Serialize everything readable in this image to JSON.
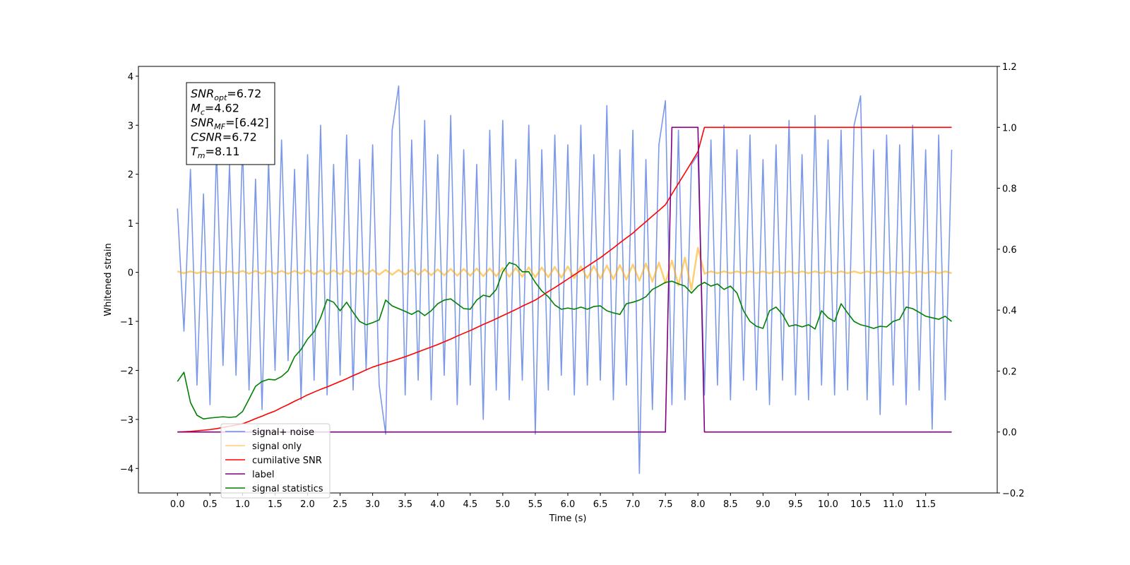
{
  "chart_data": {
    "type": "line",
    "xlabel": "Time (s)",
    "ylabel": "Whitened strain",
    "xlim": [
      -0.6,
      12.6
    ],
    "ylim": [
      -4.5,
      4.2
    ],
    "y2lim": [
      -0.2,
      1.2
    ],
    "xticks": [
      {
        "value": 0,
        "label": "0.0"
      },
      0.5,
      {
        "value": 1,
        "label": "1.0"
      },
      1.5,
      {
        "value": 2,
        "label": "2.0"
      },
      2.5,
      {
        "value": 3,
        "label": "3.0"
      },
      3.5,
      {
        "value": 4,
        "label": "4.0"
      },
      4.5,
      {
        "value": 5,
        "label": "5.0"
      },
      5.5,
      {
        "value": 6,
        "label": "6.0"
      },
      6.5,
      {
        "value": 7,
        "label": "7.0"
      },
      7.5,
      {
        "value": 8,
        "label": "8.0"
      },
      8.5,
      {
        "value": 9,
        "label": "9.0"
      },
      9.5,
      {
        "value": 10,
        "label": "10.0"
      },
      10.5,
      {
        "value": 11,
        "label": "11.0"
      },
      11.5
    ],
    "yticks": [
      {
        "value": -4,
        "label": "−4"
      },
      {
        "value": -3,
        "label": "−3"
      },
      {
        "value": -2,
        "label": "−2"
      },
      {
        "value": -1,
        "label": "−1"
      },
      0,
      1,
      2,
      3,
      4
    ],
    "y2ticks": [
      {
        "value": -0.2,
        "label": "−0.2"
      },
      {
        "value": 0,
        "label": "0.0"
      },
      0.2,
      0.4,
      0.6,
      0.8,
      {
        "value": 1,
        "label": "1.0"
      },
      1.2
    ],
    "annotation": [
      {
        "name": "SNR",
        "sub": "opt",
        "value": "=6.72"
      },
      {
        "name": "M",
        "sub": "c",
        "value": "=4.62"
      },
      {
        "name": "SNR",
        "sub": "MF",
        "value": "=[6.42]"
      },
      {
        "name": "CSNR",
        "value": "=6.72"
      },
      {
        "name": "T",
        "sub": "m",
        "value": "=8.11"
      }
    ],
    "x": [
      0,
      0.1,
      0.2,
      0.3,
      0.4,
      0.5,
      0.6,
      0.7,
      0.8,
      0.9,
      1,
      1.1,
      1.2,
      1.3,
      1.4,
      1.5,
      1.6,
      1.7,
      1.8,
      1.9,
      2,
      2.1,
      2.2,
      2.3,
      2.4,
      2.5,
      2.6,
      2.7,
      2.8,
      2.9,
      3,
      3.1,
      3.2,
      3.3,
      3.4,
      3.5,
      3.6,
      3.7,
      3.8,
      3.9,
      4,
      4.1,
      4.2,
      4.3,
      4.4,
      4.5,
      4.6,
      4.7,
      4.8,
      4.9,
      5,
      5.1,
      5.2,
      5.3,
      5.4,
      5.5,
      5.6,
      5.7,
      5.8,
      5.9,
      6,
      6.1,
      6.2,
      6.3,
      6.4,
      6.5,
      6.6,
      6.7,
      6.8,
      6.9,
      7,
      7.1,
      7.2,
      7.3,
      7.4,
      7.5,
      7.6,
      7.7,
      7.8,
      7.9,
      8,
      8.1,
      8.2,
      8.3,
      8.4,
      8.5,
      8.6,
      8.7,
      8.8,
      8.9,
      9,
      9.1,
      9.2,
      9.3,
      9.4,
      9.5,
      9.6,
      9.7,
      9.8,
      9.9,
      10,
      10.1,
      10.2,
      10.3,
      10.4,
      10.5,
      10.6,
      10.7,
      10.8,
      10.9,
      11,
      11.1,
      11.2,
      11.3,
      11.4,
      11.5,
      11.6,
      11.7,
      11.8,
      11.9
    ],
    "series": [
      {
        "name": "signal+ noise",
        "color": "#6d8ee6",
        "axis": "y",
        "values": [
          1.3,
          -1.2,
          2.1,
          -2.3,
          1.6,
          -2.7,
          2.5,
          -1.9,
          2.2,
          -2.1,
          2.6,
          -2.4,
          1.9,
          -2.8,
          2.3,
          -2.0,
          2.7,
          -1.8,
          2.1,
          -2.6,
          2.4,
          -2.2,
          3.0,
          -2.5,
          2.2,
          -2.1,
          2.8,
          -2.4,
          2.3,
          -2.0,
          2.6,
          -2.3,
          -3.3,
          2.9,
          3.8,
          -2.5,
          2.7,
          -2.2,
          3.1,
          -2.6,
          2.4,
          -2.1,
          3.2,
          -2.7,
          2.5,
          -2.3,
          2.2,
          -3.0,
          2.9,
          -2.4,
          3.1,
          -2.6,
          2.3,
          -2.2,
          3.0,
          -3.3,
          2.5,
          -2.4,
          2.8,
          -2.1,
          2.6,
          -2.5,
          3.0,
          -2.3,
          2.4,
          -2.2,
          3.4,
          -2.6,
          2.5,
          -2.3,
          2.9,
          -4.1,
          2.3,
          -2.8,
          2.6,
          3.5,
          -2.7,
          2.9,
          -2.6,
          2.2,
          2.4,
          -2.5,
          2.7,
          -2.3,
          3.0,
          -2.6,
          2.5,
          -2.2,
          2.8,
          -2.4,
          2.3,
          -2.7,
          2.6,
          -2.2,
          3.1,
          -2.5,
          2.4,
          -2.6,
          3.2,
          -2.3,
          2.7,
          -2.5,
          2.9,
          -2.4,
          3.0,
          3.6,
          -2.6,
          2.5,
          -2.9,
          2.8,
          -2.3,
          2.6,
          -2.7,
          3.0,
          -2.4,
          2.5,
          -3.2,
          2.8,
          -2.6,
          2.5
        ]
      },
      {
        "name": "signal only",
        "color": "#ffa500",
        "axis": "y",
        "values": [
          0.02,
          -0.02,
          0.02,
          -0.02,
          0.02,
          -0.02,
          0.02,
          -0.02,
          0.02,
          -0.02,
          0.03,
          -0.03,
          0.03,
          -0.03,
          0.03,
          -0.03,
          0.03,
          -0.03,
          0.03,
          -0.03,
          0.04,
          -0.04,
          0.04,
          -0.04,
          0.04,
          -0.04,
          0.04,
          -0.04,
          0.04,
          -0.04,
          0.05,
          -0.05,
          0.05,
          -0.05,
          0.05,
          -0.05,
          0.05,
          -0.05,
          0.06,
          -0.06,
          0.06,
          -0.06,
          0.07,
          -0.07,
          0.07,
          -0.07,
          0.08,
          -0.08,
          0.08,
          -0.08,
          0.09,
          -0.09,
          0.09,
          -0.09,
          0.1,
          -0.1,
          0.1,
          -0.1,
          0.11,
          -0.11,
          0.12,
          -0.12,
          0.12,
          -0.12,
          0.13,
          -0.13,
          0.14,
          -0.14,
          0.15,
          -0.15,
          0.16,
          -0.17,
          0.18,
          -0.19,
          0.2,
          -0.22,
          0.24,
          -0.27,
          0.3,
          -0.35,
          0.5,
          -0.03,
          0.02,
          -0.02,
          0.02,
          -0.02,
          0.02,
          -0.02,
          0.02,
          -0.02,
          0.02,
          -0.02,
          0.02,
          -0.02,
          0.02,
          -0.02,
          0.02,
          -0.02,
          0.02,
          -0.02,
          0.02,
          -0.02,
          0.02,
          -0.02,
          0.02,
          -0.02,
          0.02,
          -0.02,
          0.02,
          -0.02,
          0.02,
          -0.02,
          0.02,
          -0.02,
          0.02,
          -0.02,
          0.02,
          -0.02,
          0.02,
          -0.02
        ]
      },
      {
        "name": "cumilative SNR",
        "color": "#ff0000",
        "axis": "y2",
        "values": [
          0,
          0.001,
          0.002,
          0.004,
          0.006,
          0.008,
          0.011,
          0.015,
          0.019,
          0.023,
          0.027,
          0.035,
          0.044,
          0.052,
          0.061,
          0.069,
          0.08,
          0.09,
          0.101,
          0.111,
          0.122,
          0.131,
          0.14,
          0.148,
          0.157,
          0.166,
          0.175,
          0.185,
          0.194,
          0.204,
          0.213,
          0.22,
          0.227,
          0.233,
          0.24,
          0.247,
          0.255,
          0.263,
          0.271,
          0.279,
          0.287,
          0.296,
          0.305,
          0.315,
          0.324,
          0.333,
          0.343,
          0.353,
          0.362,
          0.372,
          0.382,
          0.392,
          0.402,
          0.413,
          0.423,
          0.433,
          0.447,
          0.461,
          0.474,
          0.488,
          0.502,
          0.516,
          0.53,
          0.544,
          0.558,
          0.572,
          0.588,
          0.604,
          0.621,
          0.637,
          0.653,
          0.672,
          0.69,
          0.709,
          0.727,
          0.746,
          0.781,
          0.816,
          0.85,
          0.885,
          0.92,
          1,
          1,
          1,
          1,
          1,
          1,
          1,
          1,
          1,
          1,
          1,
          1,
          1,
          1,
          1,
          1,
          1,
          1,
          1,
          1,
          1,
          1,
          1,
          1,
          1,
          1,
          1,
          1,
          1,
          1,
          1,
          1,
          1,
          1,
          1,
          1,
          1,
          1,
          1
        ]
      },
      {
        "name": "label",
        "color": "#800080",
        "axis": "y2",
        "values": [
          0,
          0,
          0,
          0,
          0,
          0,
          0,
          0,
          0,
          0,
          0,
          0,
          0,
          0,
          0,
          0,
          0,
          0,
          0,
          0,
          0,
          0,
          0,
          0,
          0,
          0,
          0,
          0,
          0,
          0,
          0,
          0,
          0,
          0,
          0,
          0,
          0,
          0,
          0,
          0,
          0,
          0,
          0,
          0,
          0,
          0,
          0,
          0,
          0,
          0,
          0,
          0,
          0,
          0,
          0,
          0,
          0,
          0,
          0,
          0,
          0,
          0,
          0,
          0,
          0,
          0,
          0,
          0,
          0,
          0,
          0,
          0,
          0,
          0,
          0,
          0,
          1,
          1,
          1,
          1,
          1,
          0,
          0,
          0,
          0,
          0,
          0,
          0,
          0,
          0,
          0,
          0,
          0,
          0,
          0,
          0,
          0,
          0,
          0,
          0,
          0,
          0,
          0,
          0,
          0,
          0,
          0,
          0,
          0,
          0,
          0,
          0,
          0,
          0,
          0,
          0,
          0,
          0,
          0,
          0
        ]
      },
      {
        "name": "signal statistics",
        "color": "#008000",
        "axis": "y2",
        "values": [
          0.166,
          0.196,
          0.097,
          0.055,
          0.043,
          0.046,
          0.048,
          0.05,
          0.048,
          0.05,
          0.067,
          0.108,
          0.15,
          0.166,
          0.173,
          0.171,
          0.182,
          0.201,
          0.247,
          0.271,
          0.305,
          0.329,
          0.375,
          0.435,
          0.426,
          0.398,
          0.426,
          0.393,
          0.363,
          0.352,
          0.359,
          0.368,
          0.433,
          0.414,
          0.405,
          0.396,
          0.386,
          0.398,
          0.382,
          0.398,
          0.421,
          0.433,
          0.437,
          0.421,
          0.405,
          0.403,
          0.433,
          0.449,
          0.444,
          0.468,
          0.526,
          0.556,
          0.549,
          0.526,
          0.526,
          0.491,
          0.463,
          0.444,
          0.417,
          0.403,
          0.407,
          0.403,
          0.41,
          0.403,
          0.412,
          0.414,
          0.398,
          0.391,
          0.386,
          0.421,
          0.426,
          0.433,
          0.444,
          0.468,
          0.479,
          0.491,
          0.495,
          0.486,
          0.479,
          0.456,
          0.479,
          0.491,
          0.479,
          0.486,
          0.468,
          0.479,
          0.456,
          0.398,
          0.363,
          0.347,
          0.34,
          0.398,
          0.41,
          0.386,
          0.347,
          0.352,
          0.345,
          0.352,
          0.338,
          0.398,
          0.375,
          0.363,
          0.421,
          0.391,
          0.363,
          0.352,
          0.347,
          0.34,
          0.347,
          0.345,
          0.363,
          0.37,
          0.41,
          0.405,
          0.393,
          0.38,
          0.375,
          0.37,
          0.38,
          0.363
        ]
      }
    ]
  }
}
